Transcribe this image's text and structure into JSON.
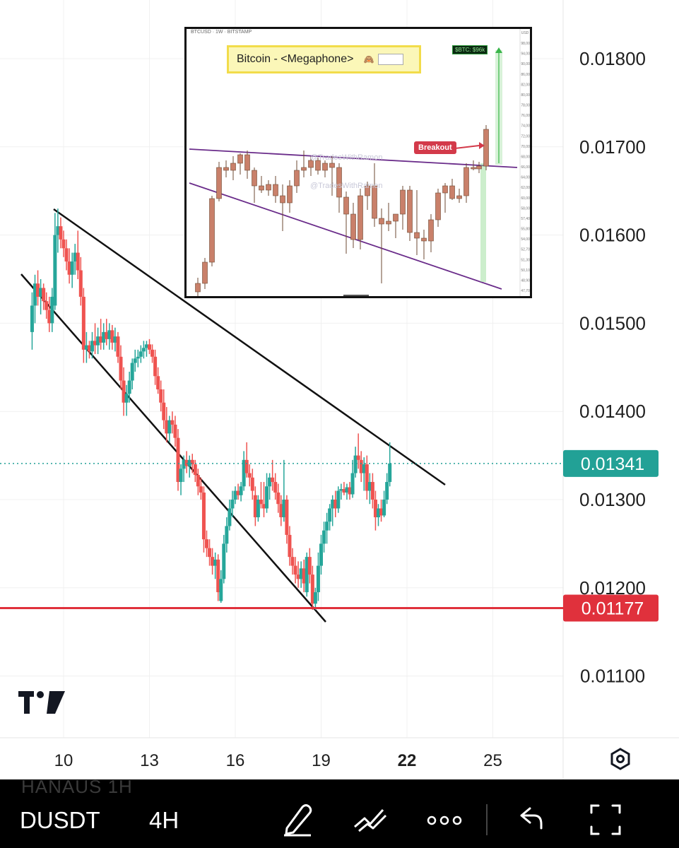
{
  "chart_data": [
    {
      "type": "candlestick",
      "symbol": "DUSDT",
      "interval": "4H",
      "price_axis": {
        "ticks": [
          "0.01800",
          "0.01700",
          "0.01600",
          "0.01500",
          "0.01400",
          "0.01300",
          "0.01200",
          "0.01100"
        ],
        "ylim": [
          0.0105,
          0.0188
        ]
      },
      "time_axis": {
        "ticks": [
          "10",
          "13",
          "16",
          "19",
          "22",
          "25"
        ],
        "bold_tick": "22"
      },
      "last_price": "0.01341",
      "support_level": "0.01177",
      "colors": {
        "up": "#26a69a",
        "down": "#ef5350",
        "support": "#e0313c",
        "last_price": "#22a196"
      },
      "candles": [
        {
          "day": 8.9,
          "o": 0.0149,
          "h": 0.01535,
          "l": 0.0147,
          "c": 0.0152
        },
        {
          "day": 9.0,
          "o": 0.0152,
          "h": 0.01555,
          "l": 0.015,
          "c": 0.01545
        },
        {
          "day": 9.1,
          "o": 0.01545,
          "h": 0.0156,
          "l": 0.0152,
          "c": 0.0153
        },
        {
          "day": 9.2,
          "o": 0.0153,
          "h": 0.0155,
          "l": 0.0151,
          "c": 0.0154
        },
        {
          "day": 9.3,
          "o": 0.0154,
          "h": 0.01545,
          "l": 0.01515,
          "c": 0.01525
        },
        {
          "day": 9.4,
          "o": 0.01525,
          "h": 0.01535,
          "l": 0.01505,
          "c": 0.01515
        },
        {
          "day": 9.5,
          "o": 0.01515,
          "h": 0.0153,
          "l": 0.0149,
          "c": 0.015
        },
        {
          "day": 9.6,
          "o": 0.015,
          "h": 0.0154,
          "l": 0.0149,
          "c": 0.0153
        },
        {
          "day": 9.7,
          "o": 0.0152,
          "h": 0.01625,
          "l": 0.01515,
          "c": 0.016
        },
        {
          "day": 9.8,
          "o": 0.016,
          "h": 0.0163,
          "l": 0.0158,
          "c": 0.0161
        },
        {
          "day": 9.9,
          "o": 0.0161,
          "h": 0.0162,
          "l": 0.01585,
          "c": 0.01595
        },
        {
          "day": 10.0,
          "o": 0.01595,
          "h": 0.01605,
          "l": 0.01575,
          "c": 0.01585
        },
        {
          "day": 10.1,
          "o": 0.01585,
          "h": 0.01595,
          "l": 0.0156,
          "c": 0.0157
        },
        {
          "day": 10.2,
          "o": 0.0157,
          "h": 0.01585,
          "l": 0.01545,
          "c": 0.01555
        },
        {
          "day": 10.3,
          "o": 0.01555,
          "h": 0.0158,
          "l": 0.0154,
          "c": 0.0157
        },
        {
          "day": 10.4,
          "o": 0.0157,
          "h": 0.0159,
          "l": 0.01555,
          "c": 0.0158
        },
        {
          "day": 10.5,
          "o": 0.0158,
          "h": 0.01605,
          "l": 0.0155,
          "c": 0.0156
        },
        {
          "day": 10.6,
          "o": 0.0156,
          "h": 0.01575,
          "l": 0.0152,
          "c": 0.0153
        },
        {
          "day": 10.7,
          "o": 0.0153,
          "h": 0.0154,
          "l": 0.01455,
          "c": 0.0147
        },
        {
          "day": 10.8,
          "o": 0.0147,
          "h": 0.0149,
          "l": 0.01455,
          "c": 0.01475
        },
        {
          "day": 10.9,
          "o": 0.01475,
          "h": 0.0148,
          "l": 0.0146,
          "c": 0.01468
        },
        {
          "day": 11.0,
          "o": 0.01468,
          "h": 0.0149,
          "l": 0.0146,
          "c": 0.0148
        },
        {
          "day": 11.1,
          "o": 0.0148,
          "h": 0.015,
          "l": 0.01465,
          "c": 0.01475
        },
        {
          "day": 11.2,
          "o": 0.01475,
          "h": 0.01495,
          "l": 0.01465,
          "c": 0.01485
        },
        {
          "day": 11.3,
          "o": 0.01485,
          "h": 0.01505,
          "l": 0.0147,
          "c": 0.01478
        },
        {
          "day": 11.4,
          "o": 0.01478,
          "h": 0.015,
          "l": 0.0147,
          "c": 0.0149
        },
        {
          "day": 11.5,
          "o": 0.0149,
          "h": 0.01505,
          "l": 0.01475,
          "c": 0.01482
        },
        {
          "day": 11.6,
          "o": 0.01482,
          "h": 0.015,
          "l": 0.0147,
          "c": 0.01492
        },
        {
          "day": 11.7,
          "o": 0.01492,
          "h": 0.01498,
          "l": 0.0147,
          "c": 0.01478
        },
        {
          "day": 11.8,
          "o": 0.01478,
          "h": 0.01495,
          "l": 0.01468,
          "c": 0.01485
        },
        {
          "day": 11.9,
          "o": 0.01485,
          "h": 0.0149,
          "l": 0.01455,
          "c": 0.01462
        },
        {
          "day": 12.0,
          "o": 0.01462,
          "h": 0.01475,
          "l": 0.01425,
          "c": 0.01435
        },
        {
          "day": 12.1,
          "o": 0.01435,
          "h": 0.0145,
          "l": 0.01395,
          "c": 0.0141
        },
        {
          "day": 12.2,
          "o": 0.0141,
          "h": 0.0143,
          "l": 0.01395,
          "c": 0.0142
        },
        {
          "day": 12.3,
          "o": 0.0142,
          "h": 0.01445,
          "l": 0.0141,
          "c": 0.01435
        },
        {
          "day": 12.4,
          "o": 0.01435,
          "h": 0.0146,
          "l": 0.01425,
          "c": 0.01455
        },
        {
          "day": 12.5,
          "o": 0.01455,
          "h": 0.0147,
          "l": 0.01445,
          "c": 0.0146
        },
        {
          "day": 12.6,
          "o": 0.0146,
          "h": 0.0147,
          "l": 0.0145,
          "c": 0.01462
        },
        {
          "day": 12.7,
          "o": 0.01462,
          "h": 0.01475,
          "l": 0.01455,
          "c": 0.01468
        },
        {
          "day": 12.8,
          "o": 0.01468,
          "h": 0.0148,
          "l": 0.0146,
          "c": 0.01472
        },
        {
          "day": 12.9,
          "o": 0.01472,
          "h": 0.0148,
          "l": 0.01462,
          "c": 0.01476
        },
        {
          "day": 13.0,
          "o": 0.01476,
          "h": 0.01482,
          "l": 0.01465,
          "c": 0.0147
        },
        {
          "day": 13.1,
          "o": 0.0147,
          "h": 0.01476,
          "l": 0.01455,
          "c": 0.01462
        },
        {
          "day": 13.2,
          "o": 0.01462,
          "h": 0.0147,
          "l": 0.0143,
          "c": 0.0144
        },
        {
          "day": 13.3,
          "o": 0.0144,
          "h": 0.0145,
          "l": 0.0142,
          "c": 0.01425
        },
        {
          "day": 13.4,
          "o": 0.01425,
          "h": 0.01435,
          "l": 0.014,
          "c": 0.0141
        },
        {
          "day": 13.5,
          "o": 0.0141,
          "h": 0.01425,
          "l": 0.0138,
          "c": 0.0139
        },
        {
          "day": 13.6,
          "o": 0.0139,
          "h": 0.01405,
          "l": 0.01365,
          "c": 0.01375
        },
        {
          "day": 13.7,
          "o": 0.01375,
          "h": 0.01395,
          "l": 0.01365,
          "c": 0.0139
        },
        {
          "day": 13.8,
          "o": 0.0139,
          "h": 0.014,
          "l": 0.01375,
          "c": 0.01385
        },
        {
          "day": 13.9,
          "o": 0.01385,
          "h": 0.01395,
          "l": 0.0136,
          "c": 0.0137
        },
        {
          "day": 14.0,
          "o": 0.0137,
          "h": 0.0138,
          "l": 0.0131,
          "c": 0.0132
        },
        {
          "day": 14.1,
          "o": 0.0132,
          "h": 0.0134,
          "l": 0.01305,
          "c": 0.01335
        },
        {
          "day": 14.2,
          "o": 0.01335,
          "h": 0.0135,
          "l": 0.0132,
          "c": 0.01345
        },
        {
          "day": 14.3,
          "o": 0.01345,
          "h": 0.01355,
          "l": 0.0133,
          "c": 0.01338
        },
        {
          "day": 14.4,
          "o": 0.01338,
          "h": 0.0135,
          "l": 0.01325,
          "c": 0.01345
        },
        {
          "day": 14.5,
          "o": 0.01345,
          "h": 0.01352,
          "l": 0.0133,
          "c": 0.0134
        },
        {
          "day": 14.6,
          "o": 0.0134,
          "h": 0.01345,
          "l": 0.0132,
          "c": 0.01328
        },
        {
          "day": 14.7,
          "o": 0.01328,
          "h": 0.01335,
          "l": 0.01305,
          "c": 0.01315
        },
        {
          "day": 14.8,
          "o": 0.01315,
          "h": 0.01325,
          "l": 0.013,
          "c": 0.01308
        },
        {
          "day": 14.9,
          "o": 0.01308,
          "h": 0.01315,
          "l": 0.0124,
          "c": 0.01255
        },
        {
          "day": 15.0,
          "o": 0.01255,
          "h": 0.01265,
          "l": 0.01235,
          "c": 0.01245
        },
        {
          "day": 15.1,
          "o": 0.01245,
          "h": 0.01255,
          "l": 0.01225,
          "c": 0.01235
        },
        {
          "day": 15.2,
          "o": 0.01235,
          "h": 0.01245,
          "l": 0.01215,
          "c": 0.01225
        },
        {
          "day": 15.3,
          "o": 0.01225,
          "h": 0.0124,
          "l": 0.0121,
          "c": 0.01232
        },
        {
          "day": 15.4,
          "o": 0.01232,
          "h": 0.01238,
          "l": 0.01185,
          "c": 0.01195
        },
        {
          "day": 15.5,
          "o": 0.01185,
          "h": 0.0122,
          "l": 0.01183,
          "c": 0.0121
        },
        {
          "day": 15.6,
          "o": 0.0121,
          "h": 0.0126,
          "l": 0.01205,
          "c": 0.0125
        },
        {
          "day": 15.7,
          "o": 0.0125,
          "h": 0.0128,
          "l": 0.0124,
          "c": 0.0127
        },
        {
          "day": 15.8,
          "o": 0.0127,
          "h": 0.013,
          "l": 0.01265,
          "c": 0.0129
        },
        {
          "day": 15.9,
          "o": 0.0129,
          "h": 0.0131,
          "l": 0.0128,
          "c": 0.013
        },
        {
          "day": 16.0,
          "o": 0.013,
          "h": 0.01315,
          "l": 0.01295,
          "c": 0.0131
        },
        {
          "day": 16.1,
          "o": 0.0131,
          "h": 0.01318,
          "l": 0.013,
          "c": 0.01305
        },
        {
          "day": 16.2,
          "o": 0.01305,
          "h": 0.0132,
          "l": 0.01298,
          "c": 0.01315
        },
        {
          "day": 16.3,
          "o": 0.01315,
          "h": 0.01355,
          "l": 0.0131,
          "c": 0.01345
        },
        {
          "day": 16.4,
          "o": 0.01345,
          "h": 0.01365,
          "l": 0.01325,
          "c": 0.0133
        },
        {
          "day": 16.5,
          "o": 0.0133,
          "h": 0.0134,
          "l": 0.01315,
          "c": 0.01325
        },
        {
          "day": 16.6,
          "o": 0.01325,
          "h": 0.01335,
          "l": 0.013,
          "c": 0.0131
        },
        {
          "day": 16.7,
          "o": 0.01305,
          "h": 0.01315,
          "l": 0.0127,
          "c": 0.0128
        },
        {
          "day": 16.8,
          "o": 0.0128,
          "h": 0.01305,
          "l": 0.01275,
          "c": 0.013
        },
        {
          "day": 16.9,
          "o": 0.013,
          "h": 0.0132,
          "l": 0.0129,
          "c": 0.01295
        },
        {
          "day": 17.0,
          "o": 0.01295,
          "h": 0.0132,
          "l": 0.0128,
          "c": 0.0129
        },
        {
          "day": 17.1,
          "o": 0.0129,
          "h": 0.0133,
          "l": 0.01285,
          "c": 0.01315
        },
        {
          "day": 17.2,
          "o": 0.01315,
          "h": 0.0133,
          "l": 0.013,
          "c": 0.01325
        },
        {
          "day": 17.3,
          "o": 0.01325,
          "h": 0.01345,
          "l": 0.0131,
          "c": 0.0132
        }
      ]
    },
    {
      "type": "candlestick",
      "title": "Bitcoin - <Megaphone>",
      "header": "BTCUSD · 1W · BITSTAMP",
      "target_label": "$BTC: $96k",
      "annotation": "Breakout",
      "watermarks": [
        "@TradesWithRamon",
        "@TradesWithRamon"
      ],
      "price_ticks": [
        "98,000",
        "94,000",
        "90,000",
        "86,000",
        "82,000",
        "80,000",
        "78,000",
        "76,000",
        "74,000",
        "72,000",
        "70,000",
        "68,000",
        "66,000",
        "64,000",
        "62,000",
        "60,000",
        "58,000",
        "57,400",
        "55,800",
        "54,000",
        "52,700",
        "51,300",
        "50,100",
        "48,900",
        "47,700"
      ],
      "price_unit": "USD"
    }
  ],
  "toolbar": {
    "symbol": "DUSDT",
    "interval": "4H",
    "ghost_text": "HANAUS   1H"
  }
}
